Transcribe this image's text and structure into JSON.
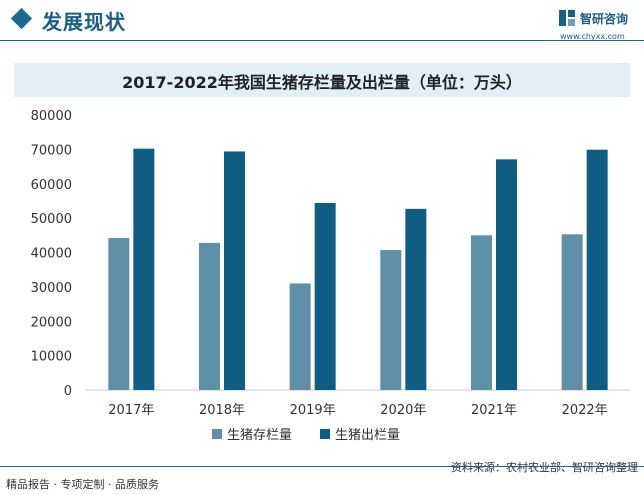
{
  "header": {
    "section_title": "发展现状",
    "logo_name": "智研咨询",
    "logo_url": "www.chyxx.com"
  },
  "chart_data": {
    "type": "bar",
    "title": "2017-2022年我国生猪存栏量及出栏量（单位：万头）",
    "categories": [
      "2017年",
      "2018年",
      "2019年",
      "2020年",
      "2021年",
      "2022年"
    ],
    "series": [
      {
        "name": "生猪存栏量",
        "color": "#5f8fa7",
        "values": [
          44200,
          42800,
          31000,
          40700,
          45000,
          45300
        ]
      },
      {
        "name": "生猪出栏量",
        "color": "#0f5e82",
        "values": [
          70200,
          69400,
          54400,
          52700,
          67100,
          69900
        ]
      }
    ],
    "yticks": [
      0,
      10000,
      20000,
      30000,
      40000,
      50000,
      60000,
      70000,
      80000
    ],
    "ylim": [
      0,
      80000
    ],
    "grid": false,
    "legend_position": "bottom"
  },
  "footer": {
    "left": "精品报告 · 专项定制 · 品质服务",
    "right": "资料来源：农村农业部、智研咨询整理"
  }
}
